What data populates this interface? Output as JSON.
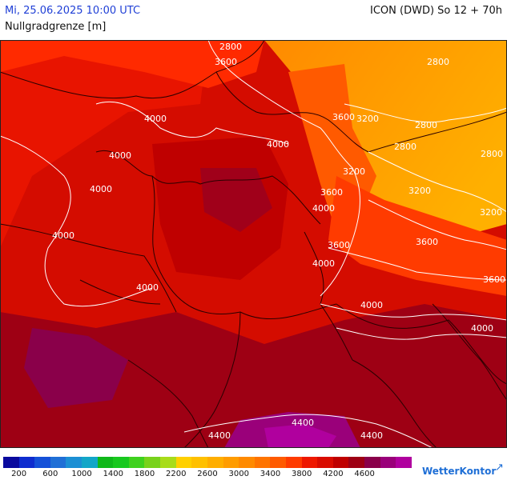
{
  "header": {
    "valid_time": "Mi, 25.06.2025 10:00 UTC",
    "model_run": "ICON (DWD) So 12 + 70h",
    "variable": "Nullgradgrenze [m]"
  },
  "map": {
    "contour_labels": [
      "2800",
      "3600",
      "2800",
      "4000",
      "3600",
      "3200",
      "2800",
      "4000",
      "2800",
      "2800",
      "4000",
      "3200",
      "3200",
      "4000",
      "3600",
      "3200",
      "4000",
      "4000",
      "3600",
      "3600",
      "4000",
      "3600",
      "4000",
      "4000",
      "4000",
      "4400",
      "4400",
      "4400"
    ]
  },
  "legend": {
    "colors": [
      "#0a0a9e",
      "#0e2ccf",
      "#1450d8",
      "#1f6fd6",
      "#1b8fd4",
      "#12a6c8",
      "#10b81a",
      "#18c81e",
      "#3fd11e",
      "#78d21b",
      "#a8dc1a",
      "#ffd000",
      "#ffc000",
      "#ffae00",
      "#ff9c00",
      "#ff8a00",
      "#ff7400",
      "#ff5a00",
      "#ff3b00",
      "#ee1800",
      "#d90c00",
      "#bf0000",
      "#9e0014",
      "#8a004a",
      "#9a007a",
      "#b0009e"
    ],
    "labels": [
      "200",
      "600",
      "1000",
      "1400",
      "1800",
      "2200",
      "2600",
      "3000",
      "3400",
      "3800",
      "4200",
      "4600"
    ]
  },
  "branding": {
    "name": "WetterKontor"
  }
}
